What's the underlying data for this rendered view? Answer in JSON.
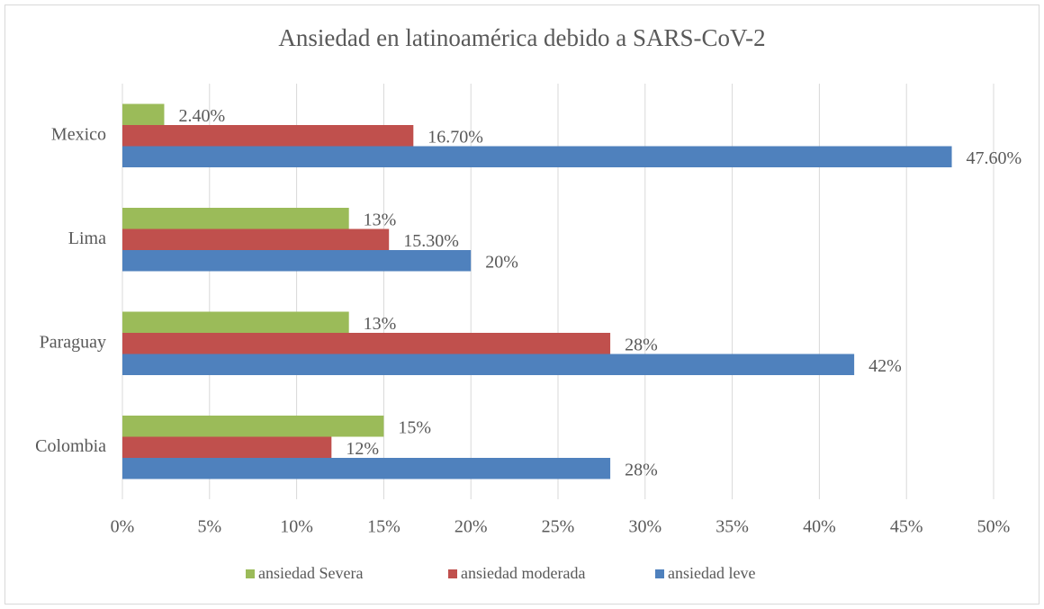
{
  "chart_data": {
    "type": "hbar",
    "title": "Ansiedad en latinoamérica debido a SARS-CoV-2",
    "categories": [
      "Colombia",
      "Paraguay",
      "Lima",
      "Mexico"
    ],
    "series": [
      {
        "name": "ansiedad Severa",
        "color": "#9bbb59",
        "values": [
          15,
          13,
          13,
          2.4
        ],
        "value_labels": [
          "15%",
          "13%",
          "13%",
          "2.40%"
        ]
      },
      {
        "name": "ansiedad moderada",
        "color": "#c0504d",
        "values": [
          12,
          28,
          15.3,
          16.7
        ],
        "value_labels": [
          "12%",
          "28%",
          "15.30%",
          "16.70%"
        ]
      },
      {
        "name": "ansiedad leve",
        "color": "#4f81bd",
        "values": [
          28,
          42,
          20,
          47.6
        ],
        "value_labels": [
          "28%",
          "42%",
          "20%",
          "47.60%"
        ]
      }
    ],
    "xlim": [
      0,
      50
    ],
    "xticks": [
      {
        "value": 0,
        "label": "0%"
      },
      {
        "value": 5,
        "label": "5%"
      },
      {
        "value": 10,
        "label": "10%"
      },
      {
        "value": 15,
        "label": "15%"
      },
      {
        "value": 20,
        "label": "20%"
      },
      {
        "value": 25,
        "label": "25%"
      },
      {
        "value": 30,
        "label": "30%"
      },
      {
        "value": 35,
        "label": "35%"
      },
      {
        "value": 40,
        "label": "40%"
      },
      {
        "value": 45,
        "label": "45%"
      },
      {
        "value": 50,
        "label": "50%"
      }
    ],
    "grid": true,
    "legend": "bottom"
  }
}
